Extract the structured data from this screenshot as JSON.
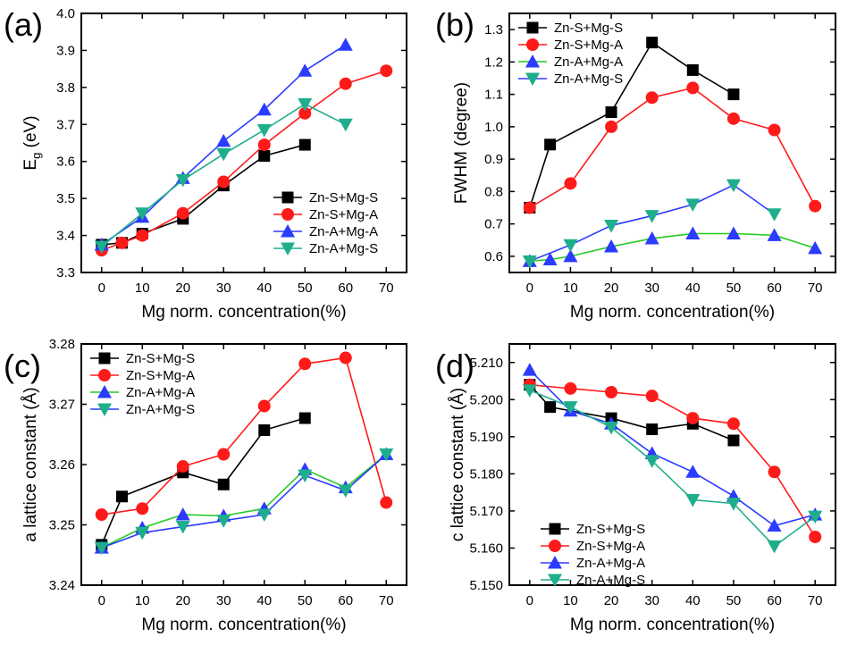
{
  "series_styles": [
    {
      "name": "Zn-S+Mg-S",
      "color": "#000000",
      "marker": "square"
    },
    {
      "name": "Zn-S+Mg-A",
      "color": "#ff1a1a",
      "marker": "circle"
    },
    {
      "name": "Zn-A+Mg-A",
      "color": "#2b3bff",
      "marker": "triangle-up"
    },
    {
      "name": "Zn-A+Mg-S",
      "color": "#1fae8c",
      "marker": "triangle-down"
    }
  ],
  "chart_data": [
    {
      "type": "line",
      "panel_label": "(a)",
      "xlabel": "Mg norm. concentration(%)",
      "ylabel": "E",
      "ylabel_sub": "g",
      "ylabel_unit": " (eV)",
      "xlim": [
        -5,
        75
      ],
      "ylim": [
        3.3,
        4.0
      ],
      "xticks": [
        0,
        10,
        20,
        30,
        40,
        50,
        60,
        70
      ],
      "yticks": [
        3.3,
        3.4,
        3.5,
        3.6,
        3.7,
        3.8,
        3.9,
        4.0
      ],
      "ytick_decimals": 1,
      "legend_position": "bottom-right",
      "legend_line_colors": [
        "#000000",
        "#ff1a1a",
        "#2b3bff",
        "#1fae8c"
      ],
      "series": [
        {
          "name": "Zn-S+Mg-S",
          "line_color": "#000000",
          "x": [
            0,
            5,
            10,
            20,
            30,
            40,
            50
          ],
          "y": [
            3.375,
            3.38,
            3.405,
            3.445,
            3.535,
            3.615,
            3.645
          ]
        },
        {
          "name": "Zn-S+Mg-A",
          "line_color": "#ff1a1a",
          "x": [
            0,
            5,
            10,
            20,
            30,
            40,
            50,
            60,
            70
          ],
          "y": [
            3.36,
            3.38,
            3.4,
            3.46,
            3.545,
            3.645,
            3.73,
            3.81,
            3.845
          ]
        },
        {
          "name": "Zn-A+Mg-A",
          "line_color": "#2b3bff",
          "x": [
            0,
            10,
            20,
            30,
            40,
            50,
            60
          ],
          "y": [
            3.375,
            3.45,
            3.555,
            3.655,
            3.74,
            3.845,
            3.915
          ]
        },
        {
          "name": "Zn-A+Mg-S",
          "line_color": "#1fae8c",
          "x": [
            0,
            10,
            20,
            30,
            40,
            50,
            60
          ],
          "y": [
            3.37,
            3.46,
            3.55,
            3.62,
            3.685,
            3.755,
            3.7
          ]
        }
      ]
    },
    {
      "type": "line",
      "panel_label": "(b)",
      "xlabel": "Mg norm. concentration(%)",
      "ylabel": "FWHM (degree)",
      "xlim": [
        -5,
        75
      ],
      "ylim": [
        0.55,
        1.35
      ],
      "xticks": [
        0,
        10,
        20,
        30,
        40,
        50,
        60,
        70
      ],
      "yticks": [
        0.6,
        0.7,
        0.8,
        0.9,
        1.0,
        1.1,
        1.2,
        1.3
      ],
      "ytick_decimals": 1,
      "legend_position": "top-left",
      "legend_line_colors": [
        "#000000",
        "#ff1a1a",
        "#22cc22",
        "#2b3bff"
      ],
      "series": [
        {
          "name": "Zn-S+Mg-S",
          "line_color": "#000000",
          "x": [
            0,
            5,
            20,
            30,
            40,
            50
          ],
          "y": [
            0.75,
            0.945,
            1.045,
            1.26,
            1.175,
            1.1
          ]
        },
        {
          "name": "Zn-S+Mg-A",
          "line_color": "#ff1a1a",
          "x": [
            0,
            10,
            20,
            30,
            40,
            50,
            60,
            70
          ],
          "y": [
            0.75,
            0.825,
            1.0,
            1.09,
            1.12,
            1.025,
            0.99,
            0.755
          ]
        },
        {
          "name": "Zn-A+Mg-A",
          "line_color": "#22cc22",
          "x": [
            0,
            5,
            10,
            20,
            30,
            40,
            50,
            60,
            70
          ],
          "y": [
            0.585,
            0.59,
            0.6,
            0.63,
            0.655,
            0.67,
            0.67,
            0.665,
            0.625
          ]
        },
        {
          "name": "Zn-A+Mg-S",
          "line_color": "#2b3bff",
          "x": [
            0,
            10,
            20,
            30,
            40,
            50,
            60
          ],
          "y": [
            0.585,
            0.635,
            0.695,
            0.725,
            0.76,
            0.82,
            0.73
          ]
        }
      ]
    },
    {
      "type": "line",
      "panel_label": "(c)",
      "xlabel": "Mg norm. concentration(%)",
      "ylabel": "a lattice constant (Å)",
      "xlim": [
        -5,
        75
      ],
      "ylim": [
        3.24,
        3.28
      ],
      "xticks": [
        0,
        10,
        20,
        30,
        40,
        50,
        60,
        70
      ],
      "yticks": [
        3.24,
        3.25,
        3.26,
        3.27,
        3.28
      ],
      "ytick_decimals": 2,
      "legend_position": "top-left",
      "legend_line_colors": [
        "#000000",
        "#ff1a1a",
        "#22cc22",
        "#2b3bff"
      ],
      "series": [
        {
          "name": "Zn-S+Mg-S",
          "line_color": "#000000",
          "x": [
            0,
            5,
            20,
            30,
            40,
            50
          ],
          "y": [
            3.2467,
            3.2547,
            3.2587,
            3.2567,
            3.2657,
            3.2677
          ]
        },
        {
          "name": "Zn-S+Mg-A",
          "line_color": "#ff1a1a",
          "x": [
            0,
            10,
            20,
            30,
            40,
            50,
            60,
            70
          ],
          "y": [
            3.2517,
            3.2527,
            3.2597,
            3.2617,
            3.2697,
            3.2767,
            3.2777,
            3.2537
          ]
        },
        {
          "name": "Zn-A+Mg-A",
          "line_color": "#22cc22",
          "x": [
            0,
            10,
            20,
            30,
            40,
            50,
            60,
            70
          ],
          "y": [
            3.2462,
            3.2495,
            3.2517,
            3.2515,
            3.2527,
            3.2592,
            3.2562,
            3.2617
          ]
        },
        {
          "name": "Zn-A+Mg-S",
          "line_color": "#2b3bff",
          "x": [
            0,
            10,
            20,
            30,
            40,
            50,
            60,
            70
          ],
          "y": [
            3.2462,
            3.2487,
            3.2497,
            3.2507,
            3.2517,
            3.2582,
            3.2557,
            3.2617
          ]
        }
      ]
    },
    {
      "type": "line",
      "panel_label": "(d)",
      "xlabel": "Mg norm. concentration(%)",
      "ylabel": "c lattice constant (Å)",
      "xlim": [
        -5,
        75
      ],
      "ylim": [
        5.15,
        5.215
      ],
      "xticks": [
        0,
        10,
        20,
        30,
        40,
        50,
        60,
        70
      ],
      "yticks": [
        5.15,
        5.16,
        5.17,
        5.18,
        5.19,
        5.2,
        5.21
      ],
      "ytick_decimals": 3,
      "legend_position": "bottom-left",
      "legend_line_colors": [
        "#000000",
        "#ff1a1a",
        "#2b3bff",
        "#1fae8c"
      ],
      "series": [
        {
          "name": "Zn-S+Mg-S",
          "line_color": "#000000",
          "x": [
            0,
            5,
            20,
            30,
            40,
            50
          ],
          "y": [
            5.204,
            5.198,
            5.195,
            5.192,
            5.1935,
            5.189
          ]
        },
        {
          "name": "Zn-S+Mg-A",
          "line_color": "#ff1a1a",
          "x": [
            0,
            10,
            20,
            30,
            40,
            50,
            60,
            70
          ],
          "y": [
            5.204,
            5.203,
            5.202,
            5.201,
            5.195,
            5.1935,
            5.1805,
            5.163
          ]
        },
        {
          "name": "Zn-A+Mg-A",
          "line_color": "#2b3bff",
          "x": [
            0,
            10,
            20,
            30,
            40,
            50,
            60,
            70
          ],
          "y": [
            5.208,
            5.197,
            5.1935,
            5.1855,
            5.1805,
            5.174,
            5.166,
            5.169
          ]
        },
        {
          "name": "Zn-A+Mg-S",
          "line_color": "#1fae8c",
          "x": [
            0,
            10,
            20,
            30,
            40,
            50,
            60,
            70
          ],
          "y": [
            5.2025,
            5.198,
            5.1925,
            5.1835,
            5.173,
            5.172,
            5.1605,
            5.1685
          ]
        }
      ]
    }
  ]
}
